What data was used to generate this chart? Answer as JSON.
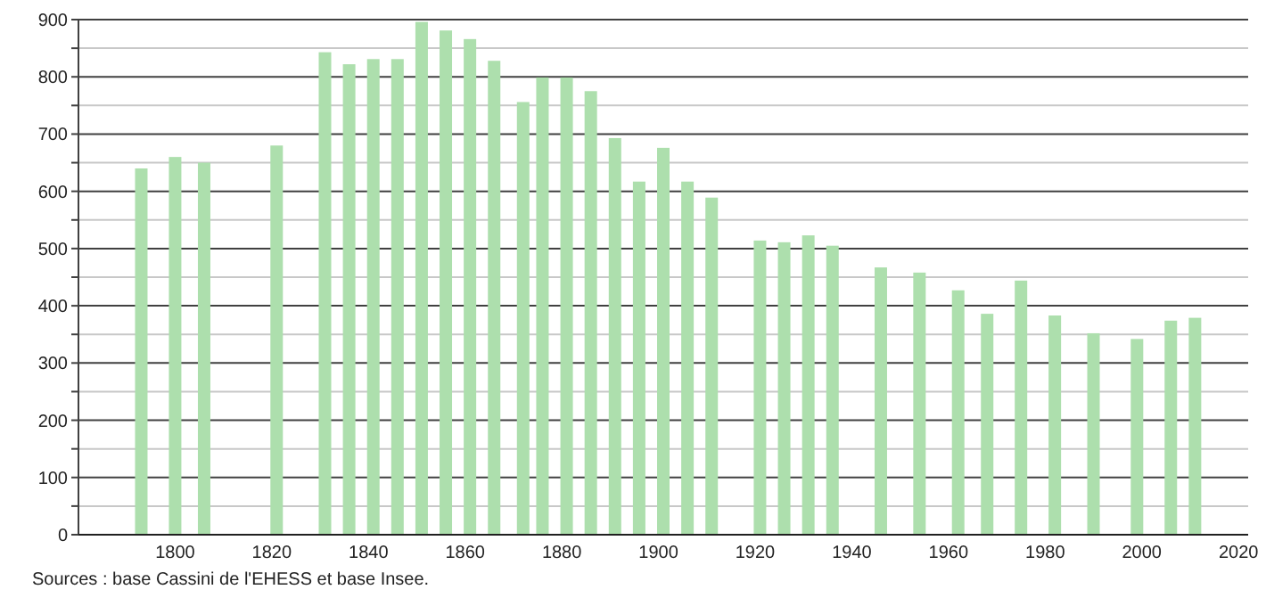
{
  "chart_data": {
    "type": "bar",
    "x": [
      1793,
      1800,
      1806,
      1821,
      1831,
      1836,
      1841,
      1846,
      1851,
      1856,
      1861,
      1866,
      1872,
      1876,
      1881,
      1886,
      1891,
      1896,
      1901,
      1906,
      1911,
      1921,
      1926,
      1931,
      1936,
      1946,
      1954,
      1962,
      1968,
      1975,
      1982,
      1990,
      1999,
      2006,
      2011
    ],
    "values": [
      640,
      660,
      650,
      680,
      843,
      822,
      831,
      831,
      896,
      881,
      866,
      828,
      756,
      799,
      799,
      775,
      693,
      617,
      676,
      617,
      589,
      514,
      511,
      523,
      505,
      467,
      458,
      427,
      386,
      444,
      383,
      352,
      342,
      374,
      379
    ],
    "color": "#addfad",
    "xlim": [
      1780,
      2022
    ],
    "xticks": [
      1800,
      1820,
      1840,
      1860,
      1880,
      1900,
      1920,
      1940,
      1960,
      1980,
      2000,
      2020
    ],
    "ylim": [
      0,
      900
    ],
    "yticks": [
      0,
      {
        "value": 50,
        "label": null
      },
      100,
      {
        "value": 150,
        "label": null
      },
      200,
      {
        "value": 250,
        "label": null
      },
      300,
      {
        "value": 350,
        "label": null
      },
      400,
      {
        "value": 450,
        "label": null
      },
      500,
      {
        "value": 550,
        "label": null
      },
      600,
      {
        "value": 650,
        "label": null
      },
      700,
      {
        "value": 750,
        "label": null
      },
      800,
      {
        "value": 850,
        "label": null
      },
      900
    ],
    "grid": true,
    "annotations": [
      "Sources : base Cassini de l'EHESS et base Insee."
    ]
  }
}
